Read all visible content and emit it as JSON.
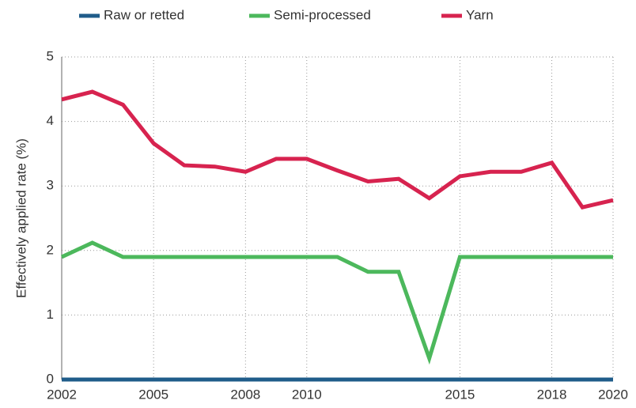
{
  "chart_data": {
    "type": "line",
    "y_label": "Effectively applied rate (%)",
    "x": [
      2002,
      2003,
      2004,
      2005,
      2006,
      2007,
      2008,
      2009,
      2010,
      2011,
      2012,
      2013,
      2014,
      2015,
      2016,
      2017,
      2018,
      2019,
      2020
    ],
    "series": [
      {
        "name": "Raw or retted",
        "color": "#1f5c8a",
        "values": [
          0,
          0,
          0,
          0,
          0,
          0,
          0,
          0,
          0,
          0,
          0,
          0,
          0,
          0,
          0,
          0,
          0,
          0,
          0
        ]
      },
      {
        "name": "Semi-processed",
        "color": "#4cb85c",
        "values": [
          1.9,
          2.12,
          1.9,
          1.9,
          1.9,
          1.9,
          1.9,
          1.9,
          1.9,
          1.9,
          1.67,
          1.67,
          0.33,
          1.9,
          1.9,
          1.9,
          1.9,
          1.9,
          1.9
        ]
      },
      {
        "name": "Yarn",
        "color": "#d7234f",
        "values": [
          4.34,
          4.46,
          4.26,
          3.66,
          3.32,
          3.3,
          3.22,
          3.42,
          3.42,
          3.24,
          3.07,
          3.11,
          2.81,
          3.15,
          3.22,
          3.22,
          3.36,
          2.67,
          2.78
        ]
      }
    ],
    "xlim": [
      2002,
      2020
    ],
    "xticks": [
      2002,
      2005,
      2008,
      2010,
      2015,
      2018,
      2020
    ],
    "ylim": [
      0,
      5
    ],
    "yticks": [
      0,
      1,
      2,
      3,
      4,
      5
    ],
    "grid": true,
    "legend": "top"
  }
}
